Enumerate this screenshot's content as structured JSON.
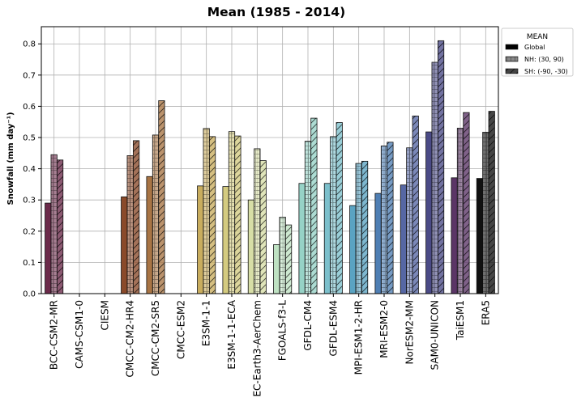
{
  "chart_data": {
    "type": "bar",
    "title": "Mean (1985 - 2014)",
    "xlabel": "",
    "ylabel": "Snowfall (mm day⁻¹)",
    "ylim": [
      0,
      0.855
    ],
    "yticks": [
      "0.0",
      "0.1",
      "0.2",
      "0.3",
      "0.4",
      "0.5",
      "0.6",
      "0.7",
      "0.8"
    ],
    "grid": true,
    "legend_position": "outside top-right",
    "legend_title": "MEAN",
    "categories": [
      "BCC-CSM2-MR",
      "CAMS-CSM1-0",
      "CIESM",
      "CMCC-CM2-HR4",
      "CMCC-CM2-SR5",
      "CMCC-ESM2",
      "E3SM-1-1",
      "E3SM-1-1-ECA",
      "EC-Earth3-AerChem",
      "FGOALS-f3-L",
      "GFDL-CM4",
      "GFDL-ESM4",
      "MPI-ESM1-2-HR",
      "MRI-ESM2-0",
      "NorESM2-MM",
      "SAM0-UNICON",
      "TaiESM1",
      "ERA5"
    ],
    "colors": [
      "#6b2a4a",
      "#6b2a4a",
      "#6b2a4a",
      "#8a4a2a",
      "#a87444",
      "#a87444",
      "#c9ad5e",
      "#d4cb80",
      "#d7dea6",
      "#bfe2c3",
      "#96d2c6",
      "#7cc0cc",
      "#5aa3c2",
      "#4f7fb4",
      "#5667a4",
      "#4a4a86",
      "#5b3566",
      "#111111"
    ],
    "series": [
      {
        "name": "Global",
        "pattern": "solid",
        "values": [
          0.29,
          null,
          null,
          0.31,
          0.375,
          null,
          0.345,
          0.343,
          0.3,
          0.157,
          0.353,
          0.353,
          0.282,
          0.321,
          0.348,
          0.518,
          0.371,
          0.369
        ]
      },
      {
        "name": "NH: (30, 90)",
        "pattern": "grid",
        "values": [
          0.445,
          null,
          null,
          0.442,
          0.508,
          null,
          0.529,
          0.519,
          0.464,
          0.245,
          0.488,
          0.503,
          0.417,
          0.473,
          0.467,
          0.741,
          0.53,
          0.517
        ]
      },
      {
        "name": "SH: (-90, -30)",
        "pattern": "hatch",
        "values": [
          0.428,
          null,
          null,
          0.49,
          0.618,
          null,
          0.503,
          0.505,
          0.426,
          0.22,
          0.562,
          0.548,
          0.424,
          0.485,
          0.569,
          0.81,
          0.58,
          0.584
        ]
      }
    ]
  }
}
